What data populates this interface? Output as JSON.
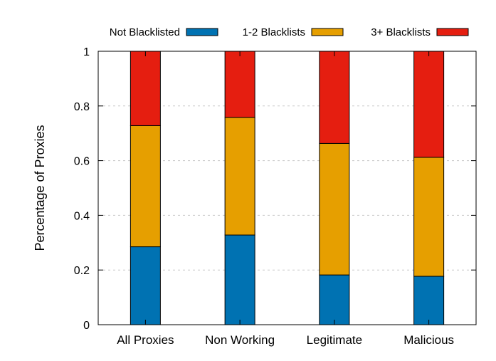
{
  "chart_data": {
    "type": "bar",
    "stacked": true,
    "categories": [
      "All Proxies",
      "Non Working",
      "Legitimate",
      "Malicious"
    ],
    "series": [
      {
        "name": "Not Blacklisted",
        "values": [
          0.285,
          0.328,
          0.182,
          0.177
        ],
        "color": "#0072b2"
      },
      {
        "name": "1-2 Blacklists",
        "values": [
          0.443,
          0.43,
          0.481,
          0.435
        ],
        "color": "#e69f00"
      },
      {
        "name": "3+ Blacklists",
        "values": [
          0.272,
          0.242,
          0.337,
          0.388
        ],
        "color": "#e51e10"
      }
    ],
    "title": "",
    "xlabel": "",
    "ylabel": "Percentage of Proxies",
    "ylim": [
      0,
      1
    ],
    "yticks": [
      "0",
      "0.2",
      "0.4",
      "0.6",
      "0.8",
      "1"
    ],
    "grid": "horizontal dashed",
    "legend_position": "top"
  }
}
